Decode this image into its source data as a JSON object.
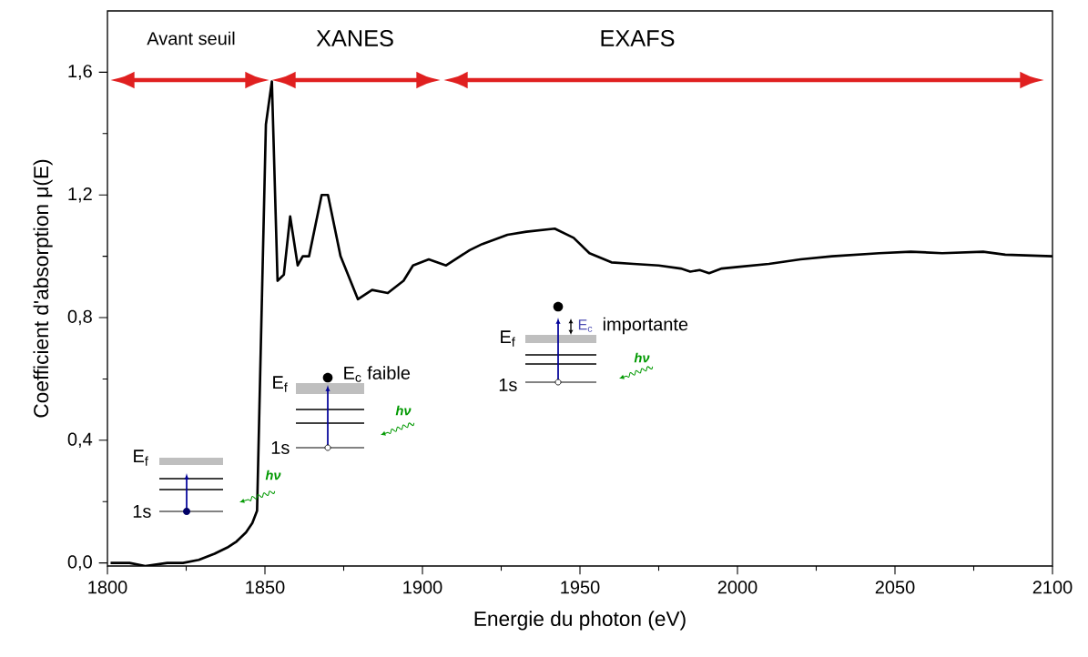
{
  "chart_data": {
    "type": "line",
    "xlabel": "Energie du photon (eV)",
    "ylabel": "Coefficient d'absorption μ(E)",
    "color": "#000000",
    "x": [
      1801,
      1807,
      1812,
      1819,
      1824,
      1829,
      1834,
      1838,
      1841,
      1844,
      1846,
      1847.5,
      1850.3,
      1852.2,
      1854,
      1856,
      1858,
      1860.4,
      1862,
      1864,
      1868,
      1870,
      1874,
      1879.5,
      1884,
      1889,
      1894,
      1897,
      1902,
      1907.5,
      1915,
      1919,
      1927,
      1933,
      1942,
      1948,
      1953,
      1960,
      1967,
      1975,
      1982,
      1985,
      1988,
      1991,
      1995,
      2000,
      2010,
      2020,
      2030,
      2045,
      2055,
      2065,
      2078,
      2085,
      2100
    ],
    "values": [
      0.0,
      0.0,
      -0.01,
      0.0,
      0.0,
      0.01,
      0.03,
      0.05,
      0.07,
      0.1,
      0.13,
      0.17,
      1.43,
      1.57,
      0.92,
      0.94,
      1.13,
      0.97,
      1.0,
      1.0,
      1.2,
      1.2,
      1.0,
      0.86,
      0.89,
      0.88,
      0.92,
      0.97,
      0.99,
      0.97,
      1.02,
      1.04,
      1.07,
      1.08,
      1.09,
      1.06,
      1.01,
      0.98,
      0.975,
      0.97,
      0.96,
      0.95,
      0.955,
      0.945,
      0.96,
      0.965,
      0.975,
      0.99,
      1.0,
      1.01,
      1.015,
      1.01,
      1.015,
      1.005,
      1.0
    ],
    "xlim": [
      1800,
      2100
    ],
    "ylim": [
      -0.01,
      1.8
    ],
    "xticks": [
      1800,
      1850,
      1900,
      1950,
      2000,
      2050,
      2100
    ],
    "yticks": [
      {
        "value": 0,
        "label": "0,0"
      },
      {
        "value": 0.4,
        "label": "0,4"
      },
      {
        "value": 0.8,
        "label": "0,8"
      },
      {
        "value": 1.2,
        "label": "1,2"
      },
      {
        "value": 1.6,
        "label": "1,6"
      }
    ],
    "annotations": [
      "Avant seuil",
      "XANES",
      "EXAFS",
      "E$_{f}$",
      "1s",
      "hν",
      "E$_{f}$",
      "1s",
      "hν",
      "E$_{c}$ faible",
      "E$_{f}$",
      "1s",
      "hν",
      "E$_{c}$",
      "importante"
    ]
  }
}
